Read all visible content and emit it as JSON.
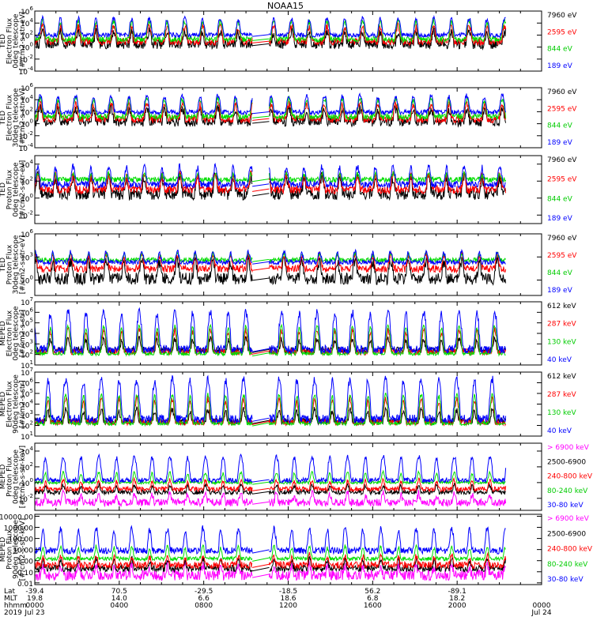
{
  "chart_data": {
    "type": "line",
    "title": "NOAA15",
    "panels": [
      {
        "ylabel": [
          "TED",
          "Electron Flux",
          "0deg telescope",
          "[#/cm2-s-str-eV]"
        ],
        "ylim": [
          0.0001,
          1000000
        ],
        "ticks": [
          {
            "label": "10",
            "exp": "6",
            "value": 1000000
          },
          {
            "label": "10",
            "exp": "4",
            "value": 10000
          },
          {
            "label": "10",
            "exp": "2",
            "value": 100
          },
          {
            "label": "10",
            "exp": "0",
            "value": 1
          },
          {
            "label": "10",
            "exp": "-2",
            "value": 0.01
          },
          {
            "label": "10",
            "exp": "-4",
            "value": 0.0001
          }
        ],
        "series": [
          {
            "name": "7960 eV",
            "color": "#000000",
            "base": 3,
            "peak": 400,
            "noise": 6
          },
          {
            "name": "2595 eV",
            "color": "#ff0000",
            "base": 8,
            "peak": 3000,
            "noise": 4
          },
          {
            "name": "844 eV",
            "color": "#00dd00",
            "base": 20,
            "peak": 20000,
            "noise": 3
          },
          {
            "name": "189 eV",
            "color": "#0000ff",
            "base": 100,
            "peak": 60000,
            "noise": 2.5
          }
        ]
      },
      {
        "ylabel": [
          "TED",
          "Electron Flux",
          "30deg telescope",
          "[#/cm2-s-str-eV]"
        ],
        "ylim": [
          0.0001,
          1000000
        ],
        "ticks": [
          {
            "label": "10",
            "exp": "6",
            "value": 1000000
          },
          {
            "label": "10",
            "exp": "4",
            "value": 10000
          },
          {
            "label": "10",
            "exp": "2",
            "value": 100
          },
          {
            "label": "10",
            "exp": "0",
            "value": 1
          },
          {
            "label": "10",
            "exp": "-2",
            "value": 0.01
          },
          {
            "label": "10",
            "exp": "-4",
            "value": 0.0001
          }
        ],
        "series": [
          {
            "name": "7960 eV",
            "color": "#000000",
            "base": 2,
            "peak": 300,
            "noise": 6
          },
          {
            "name": "2595 eV",
            "color": "#ff0000",
            "base": 6,
            "peak": 2000,
            "noise": 4
          },
          {
            "name": "844 eV",
            "color": "#00dd00",
            "base": 15,
            "peak": 15000,
            "noise": 3
          },
          {
            "name": "189 eV",
            "color": "#0000ff",
            "base": 80,
            "peak": 50000,
            "noise": 2.5
          }
        ]
      },
      {
        "ylabel": [
          "TED",
          "Proton Flux",
          "0deg telescope",
          "[#/cm2-s-str-eV]"
        ],
        "ylim": [
          0.001,
          100000
        ],
        "ticks": [
          {
            "label": "10",
            "exp": "4",
            "value": 10000
          },
          {
            "label": "10",
            "exp": "2",
            "value": 100
          },
          {
            "label": "10",
            "exp": "0",
            "value": 1
          },
          {
            "label": "10",
            "exp": "-2",
            "value": 0.01
          }
        ],
        "series": [
          {
            "name": "7960 eV",
            "color": "#000000",
            "base": 3,
            "peak": 300,
            "noise": 5
          },
          {
            "name": "2595 eV",
            "color": "#ff0000",
            "base": 10,
            "peak": 600,
            "noise": 3
          },
          {
            "name": "844 eV",
            "color": "#00dd00",
            "base": 150,
            "peak": 800,
            "noise": 2
          },
          {
            "name": "189 eV",
            "color": "#0000ff",
            "base": 40,
            "peak": 5000,
            "noise": 2.5
          }
        ]
      },
      {
        "ylabel": [
          "TED",
          "Proton Flux",
          "30deg telescope",
          "[#/cm2-s-str-eV]"
        ],
        "ylim": [
          0.01,
          1000000
        ],
        "ticks": [
          {
            "label": "10",
            "exp": "6",
            "value": 1000000
          },
          {
            "label": "10",
            "exp": "3",
            "value": 1000
          },
          {
            "label": "10",
            "exp": "0",
            "value": 1
          }
        ],
        "series": [
          {
            "name": "7960 eV",
            "color": "#000000",
            "base": 1.5,
            "peak": 300,
            "noise": 6
          },
          {
            "name": "2595 eV",
            "color": "#ff0000",
            "base": 30,
            "peak": 2000,
            "noise": 3
          },
          {
            "name": "844 eV",
            "color": "#00dd00",
            "base": 400,
            "peak": 3000,
            "noise": 2
          },
          {
            "name": "189 eV",
            "color": "#0000ff",
            "base": 200,
            "peak": 5000,
            "noise": 2
          }
        ]
      },
      {
        "ylabel": [
          "MEPED",
          "Electron Flux",
          "0deg telescope",
          "[#/cm2-s-str]"
        ],
        "ylim": [
          10,
          10000000
        ],
        "ticks": [
          {
            "label": "10",
            "exp": "7",
            "value": 10000000
          },
          {
            "label": "10",
            "exp": "6",
            "value": 1000000
          },
          {
            "label": "10",
            "exp": "5",
            "value": 100000
          },
          {
            "label": "10",
            "exp": "4",
            "value": 10000
          },
          {
            "label": "10",
            "exp": "3",
            "value": 1000
          },
          {
            "label": "10",
            "exp": "2",
            "value": 100
          },
          {
            "label": "10",
            "exp": "1",
            "value": 10
          }
        ],
        "series": [
          {
            "name": "612 keV",
            "color": "#000000",
            "base": 250,
            "peak": 3000,
            "noise": 2
          },
          {
            "name": "287 keV",
            "color": "#ff0000",
            "base": 180,
            "peak": 20000,
            "noise": 2
          },
          {
            "name": "130 keV",
            "color": "#00dd00",
            "base": 120,
            "peak": 50000,
            "noise": 1.5
          },
          {
            "name": "40 keV",
            "color": "#0000ff",
            "base": 300,
            "peak": 1000000,
            "noise": 2.5
          }
        ]
      },
      {
        "ylabel": [
          "MEPED",
          "Electron Flux",
          "90deg telescope",
          "[#/cm2-s-str]"
        ],
        "ylim": [
          10,
          10000000
        ],
        "ticks": [
          {
            "label": "10",
            "exp": "7",
            "value": 10000000
          },
          {
            "label": "10",
            "exp": "6",
            "value": 1000000
          },
          {
            "label": "10",
            "exp": "5",
            "value": 100000
          },
          {
            "label": "10",
            "exp": "4",
            "value": 10000
          },
          {
            "label": "10",
            "exp": "3",
            "value": 1000
          },
          {
            "label": "10",
            "exp": "2",
            "value": 100
          },
          {
            "label": "10",
            "exp": "1",
            "value": 10
          }
        ],
        "series": [
          {
            "name": "612 keV",
            "color": "#000000",
            "base": 250,
            "peak": 3000,
            "noise": 2
          },
          {
            "name": "287 keV",
            "color": "#ff0000",
            "base": 200,
            "peak": 30000,
            "noise": 2
          },
          {
            "name": "130 keV",
            "color": "#00dd00",
            "base": 150,
            "peak": 80000,
            "noise": 1.5
          },
          {
            "name": "40 keV",
            "color": "#0000ff",
            "base": 400,
            "peak": 2000000,
            "noise": 2.5
          }
        ]
      },
      {
        "ylabel": [
          "MEPED",
          "Proton Flux",
          "0deg telescope",
          "[#/cm2-s-str-keV]"
        ],
        "ylim": [
          0.0003,
          100000
        ],
        "ticks": [
          {
            "label": "10",
            "exp": "4",
            "value": 10000
          },
          {
            "label": "10",
            "exp": "2",
            "value": 100
          },
          {
            "label": "10",
            "exp": "0",
            "value": 1
          },
          {
            "label": "10",
            "exp": "-2",
            "value": 0.01
          }
        ],
        "series": [
          {
            "name": "> 6900 keV",
            "color": "#ff00ff",
            "base": 0.003,
            "peak": 0.04,
            "noise": 3
          },
          {
            "name": "2500-6900",
            "color": "#000000",
            "base": 0.06,
            "peak": 0.5,
            "noise": 2
          },
          {
            "name": "240-800 keV",
            "color": "#ff0000",
            "base": 0.15,
            "peak": 2,
            "noise": 2
          },
          {
            "name": "80-240 keV",
            "color": "#00dd00",
            "base": 1,
            "peak": 20,
            "noise": 1.5
          },
          {
            "name": "30-80 keV",
            "color": "#0000ff",
            "base": 2,
            "peak": 2000,
            "noise": 2
          }
        ]
      },
      {
        "ylabel": [
          "MEPED",
          "Proton Flux",
          "90deg telescope",
          "[#/cm2-s-str-keV]"
        ],
        "ylim": [
          0.007,
          15000
        ],
        "ticks": [
          {
            "label": "10000.00",
            "exp": "",
            "value": 10000
          },
          {
            "label": "1000.00",
            "exp": "",
            "value": 1000
          },
          {
            "label": "100.00",
            "exp": "",
            "value": 100
          },
          {
            "label": "10.00",
            "exp": "",
            "value": 10
          },
          {
            "label": "1.00",
            "exp": "",
            "value": 1
          },
          {
            "label": "0.10",
            "exp": "",
            "value": 0.1
          },
          {
            "label": "0.01",
            "exp": "",
            "value": 0.01
          }
        ],
        "series": [
          {
            "name": "> 6900 keV",
            "color": "#ff00ff",
            "base": 0.05,
            "peak": 0.4,
            "noise": 3
          },
          {
            "name": "2500-6900",
            "color": "#000000",
            "base": 0.2,
            "peak": 1.5,
            "noise": 2
          },
          {
            "name": "240-800 keV",
            "color": "#ff0000",
            "base": 0.4,
            "peak": 3,
            "noise": 2
          },
          {
            "name": "80-240 keV",
            "color": "#00dd00",
            "base": 1.5,
            "peak": 20,
            "noise": 1.5
          },
          {
            "name": "30-80 keV",
            "color": "#0000ff",
            "base": 8,
            "peak": 800,
            "noise": 2
          }
        ]
      }
    ],
    "x_axis": {
      "row_labels": [
        "Lat",
        "MLT",
        "hhmm",
        "2019"
      ],
      "ticks": [
        {
          "lat": "-39.4",
          "mlt": "19.8",
          "hhmm": "0000",
          "date": "Jul 23"
        },
        {
          "lat": "70.5",
          "mlt": "14.0",
          "hhmm": "0400",
          "date": ""
        },
        {
          "lat": "-29.5",
          "mlt": "6.6",
          "hhmm": "0800",
          "date": ""
        },
        {
          "lat": "-18.5",
          "mlt": "18.6",
          "hhmm": "1200",
          "date": ""
        },
        {
          "lat": "56.2",
          "mlt": "6.8",
          "hhmm": "1600",
          "date": ""
        },
        {
          "lat": "-89.1",
          "mlt": "18.2",
          "hhmm": "2000",
          "date": ""
        },
        {
          "lat": "",
          "mlt": "",
          "hhmm": "0000",
          "date": "Jul 24"
        }
      ],
      "range_hours": [
        0,
        24
      ],
      "data_span_hours": [
        0,
        22.3
      ],
      "gap_hours": [
        10.3,
        11.1
      ]
    }
  }
}
